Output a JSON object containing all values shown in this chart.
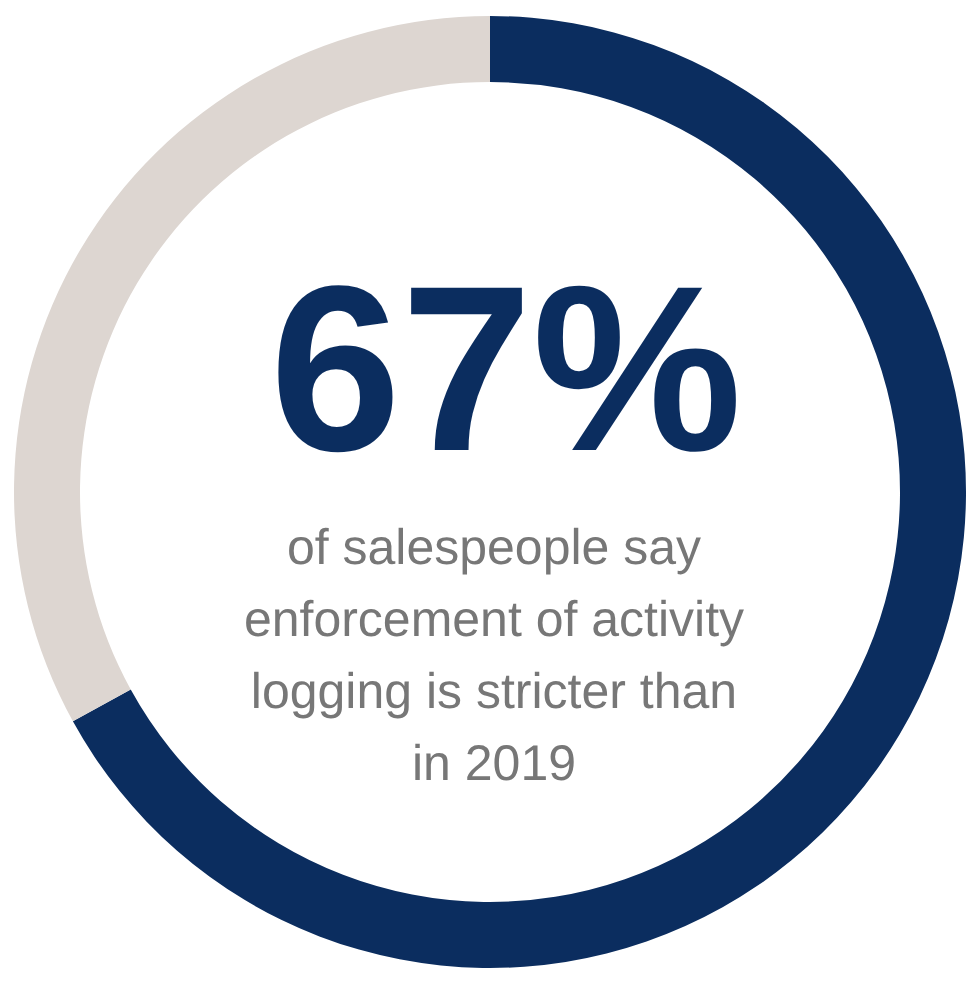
{
  "chart_data": {
    "type": "donut",
    "categories": [
      null,
      null
    ],
    "values": [
      67,
      33
    ],
    "colors": [
      "#0b2d5f",
      "#ddd6d1"
    ],
    "value_labels": [
      "67%",
      null
    ],
    "annotations": [
      "of salespeople say enforcement of activity logging is stricter than in 2019"
    ]
  }
}
